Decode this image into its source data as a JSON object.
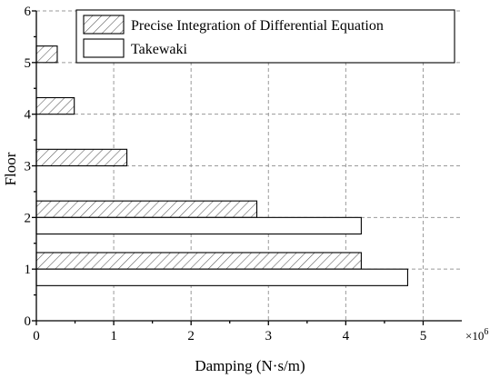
{
  "chart_data": {
    "type": "bar",
    "orientation": "horizontal",
    "title": "",
    "xlabel": "Damping (N·s/m)",
    "ylabel": "Floor",
    "x_exponent_label": "×10",
    "x_exponent_power": "6",
    "xlim": [
      0,
      5.5
    ],
    "ylim": [
      0,
      6
    ],
    "xticks": [
      0,
      1,
      2,
      3,
      4,
      5
    ],
    "yticks": [
      0,
      1,
      2,
      3,
      4,
      5,
      6
    ],
    "grid": true,
    "legend_position": "top-right",
    "categories": [
      1,
      2,
      3,
      4,
      5
    ],
    "series": [
      {
        "name": "Precise Integration of Differential Equation",
        "pattern": "hatched",
        "values": [
          4.2,
          2.85,
          1.17,
          0.49,
          0.27
        ]
      },
      {
        "name": "Takewaki",
        "pattern": "none",
        "values": [
          4.8,
          4.2,
          0,
          0,
          0
        ]
      }
    ]
  }
}
